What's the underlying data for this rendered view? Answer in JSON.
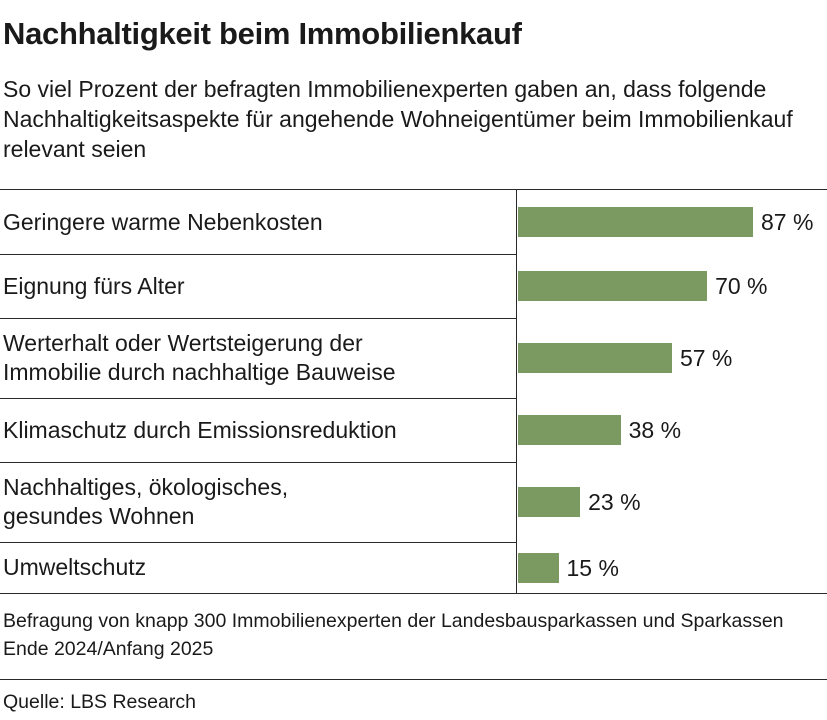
{
  "chart_data": {
    "type": "bar",
    "orientation": "horizontal",
    "title": "Nachhaltigkeit beim Immobilienkauf",
    "subtitle": "So viel Prozent der befragten Immobilienexperten gaben an, dass folgende Nachhaltigkeitsaspekte für angehende Wohneigentümer beim Immobilienkauf relevant seien",
    "categories": [
      "Geringere warme Nebenkosten",
      "Eignung fürs Alter",
      "Werterhalt oder Wertsteigerung der\nImmobilie durch nachhaltige Bauweise",
      "Klimaschutz durch Emissionsreduktion",
      "Nachhaltiges, ökologisches,\ngesundes Wohnen",
      "Umweltschutz"
    ],
    "values": [
      87,
      70,
      57,
      38,
      23,
      15
    ],
    "value_labels": [
      "87 %",
      "70 %",
      "57 %",
      "38 %",
      "23 %",
      "15 %"
    ],
    "unit": "%",
    "xlim": [
      0,
      87
    ],
    "bar_color": "#7b9a62",
    "grid": false,
    "footnote": "Befragung von knapp 300 Immobilienexperten der Landesbausparkassen und Sparkassen Ende 2024/Anfang 2025",
    "source": "Quelle: LBS Research"
  }
}
